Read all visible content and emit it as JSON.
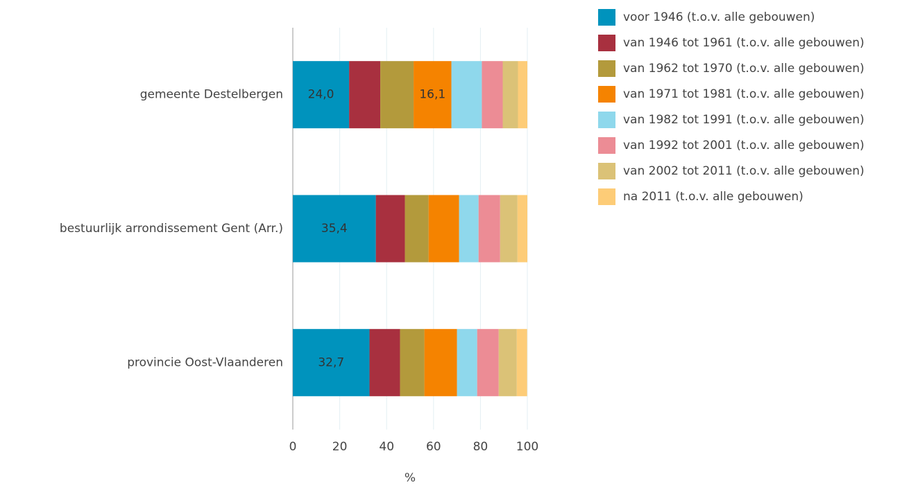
{
  "chart_data": {
    "type": "stacked-bar-horizontal",
    "categories": [
      "gemeente Destelbergen",
      "bestuurlijk arrondissement Gent (Arr.)",
      "provincie Oost-Vlaanderen"
    ],
    "series": [
      {
        "name": "voor 1946 (t.o.v. alle gebouwen)",
        "color": "#0093bd",
        "values": [
          24.0,
          35.4,
          32.7
        ],
        "value_labels": [
          "24,0",
          "35,4",
          "32,7"
        ]
      },
      {
        "name": "van 1946 tot 1961 (t.o.v. alle gebouwen)",
        "color": "#a8303f",
        "values": [
          13.3,
          12.4,
          13.0
        ]
      },
      {
        "name": "van 1962 tot 1970 (t.o.v. alle gebouwen)",
        "color": "#b39a3c",
        "values": [
          14.2,
          10.1,
          10.4
        ]
      },
      {
        "name": "van 1971 tot 1981 (t.o.v. alle gebouwen)",
        "color": "#f58300",
        "values": [
          16.1,
          13.0,
          13.9
        ],
        "value_labels": [
          "16,1",
          null,
          null
        ]
      },
      {
        "name": "van 1982 tot 1991 (t.o.v. alle gebouwen)",
        "color": "#8fd8ec",
        "values": [
          13.0,
          8.3,
          8.6
        ]
      },
      {
        "name": "van 1992 tot 2001 (t.o.v. alle gebouwen)",
        "color": "#ec8c95",
        "values": [
          8.9,
          9.2,
          9.2
        ]
      },
      {
        "name": "van 2002 tot 2011 (t.o.v. alle gebouwen)",
        "color": "#dbc277",
        "values": [
          6.5,
          7.4,
          7.7
        ]
      },
      {
        "name": "na 2011 (t.o.v. alle gebouwen)",
        "color": "#fdcc77",
        "values": [
          4.0,
          4.2,
          4.4
        ]
      }
    ],
    "x_label": "%",
    "xlim": [
      0,
      100
    ],
    "xticks": [
      0,
      20,
      40,
      60,
      80,
      100
    ],
    "grid": true,
    "legend": "right"
  }
}
